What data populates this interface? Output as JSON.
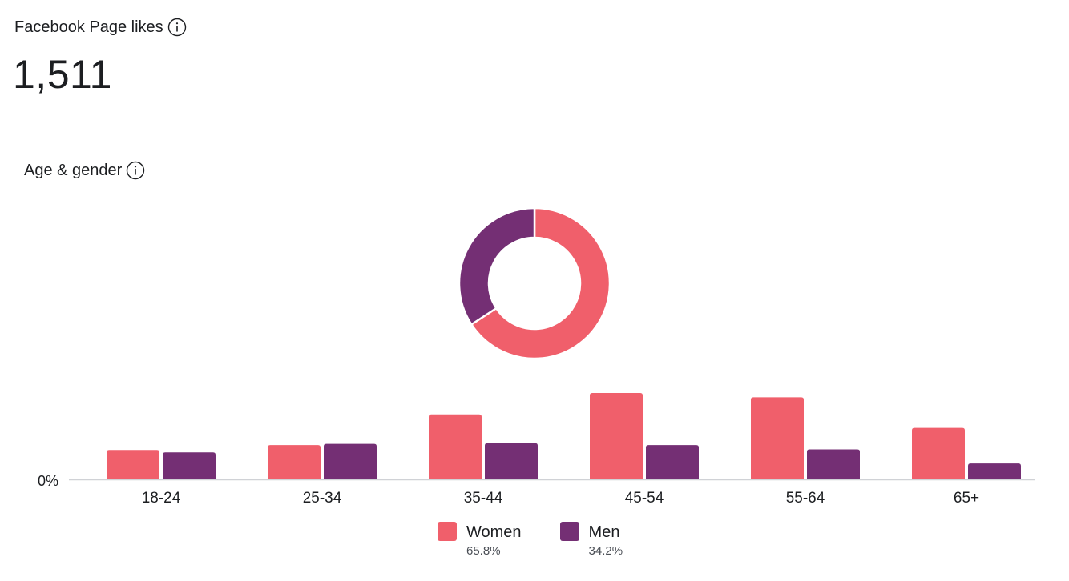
{
  "page_likes": {
    "title": "Facebook Page likes",
    "value": "1,511",
    "info_icon": "info-icon"
  },
  "age_gender": {
    "title": "Age & gender",
    "info_icon": "info-icon"
  },
  "colors": {
    "women": "#f05f6b",
    "men": "#742f74",
    "axis": "#d0d2d6",
    "text": "#1c1e21",
    "subtext": "#4b4f56"
  },
  "legend": [
    {
      "name": "Women",
      "percent": "65.8%"
    },
    {
      "name": "Men",
      "percent": "34.2%"
    }
  ],
  "chart_data": [
    {
      "type": "pie",
      "variant": "donut",
      "slices": [
        {
          "label": "Women",
          "value": 65.8
        },
        {
          "label": "Men",
          "value": 34.2
        }
      ]
    },
    {
      "type": "bar",
      "categories": [
        "18-24",
        "25-34",
        "35-44",
        "45-54",
        "55-64",
        "65+"
      ],
      "y_tick_label": "0%",
      "series": [
        {
          "name": "Women",
          "values": [
            4.8,
            5.6,
            10.6,
            14.1,
            13.4,
            8.4
          ]
        },
        {
          "name": "Men",
          "values": [
            4.4,
            5.8,
            5.9,
            5.6,
            4.9,
            2.6
          ]
        }
      ],
      "grid": false,
      "legend_position": "bottom-center"
    }
  ]
}
